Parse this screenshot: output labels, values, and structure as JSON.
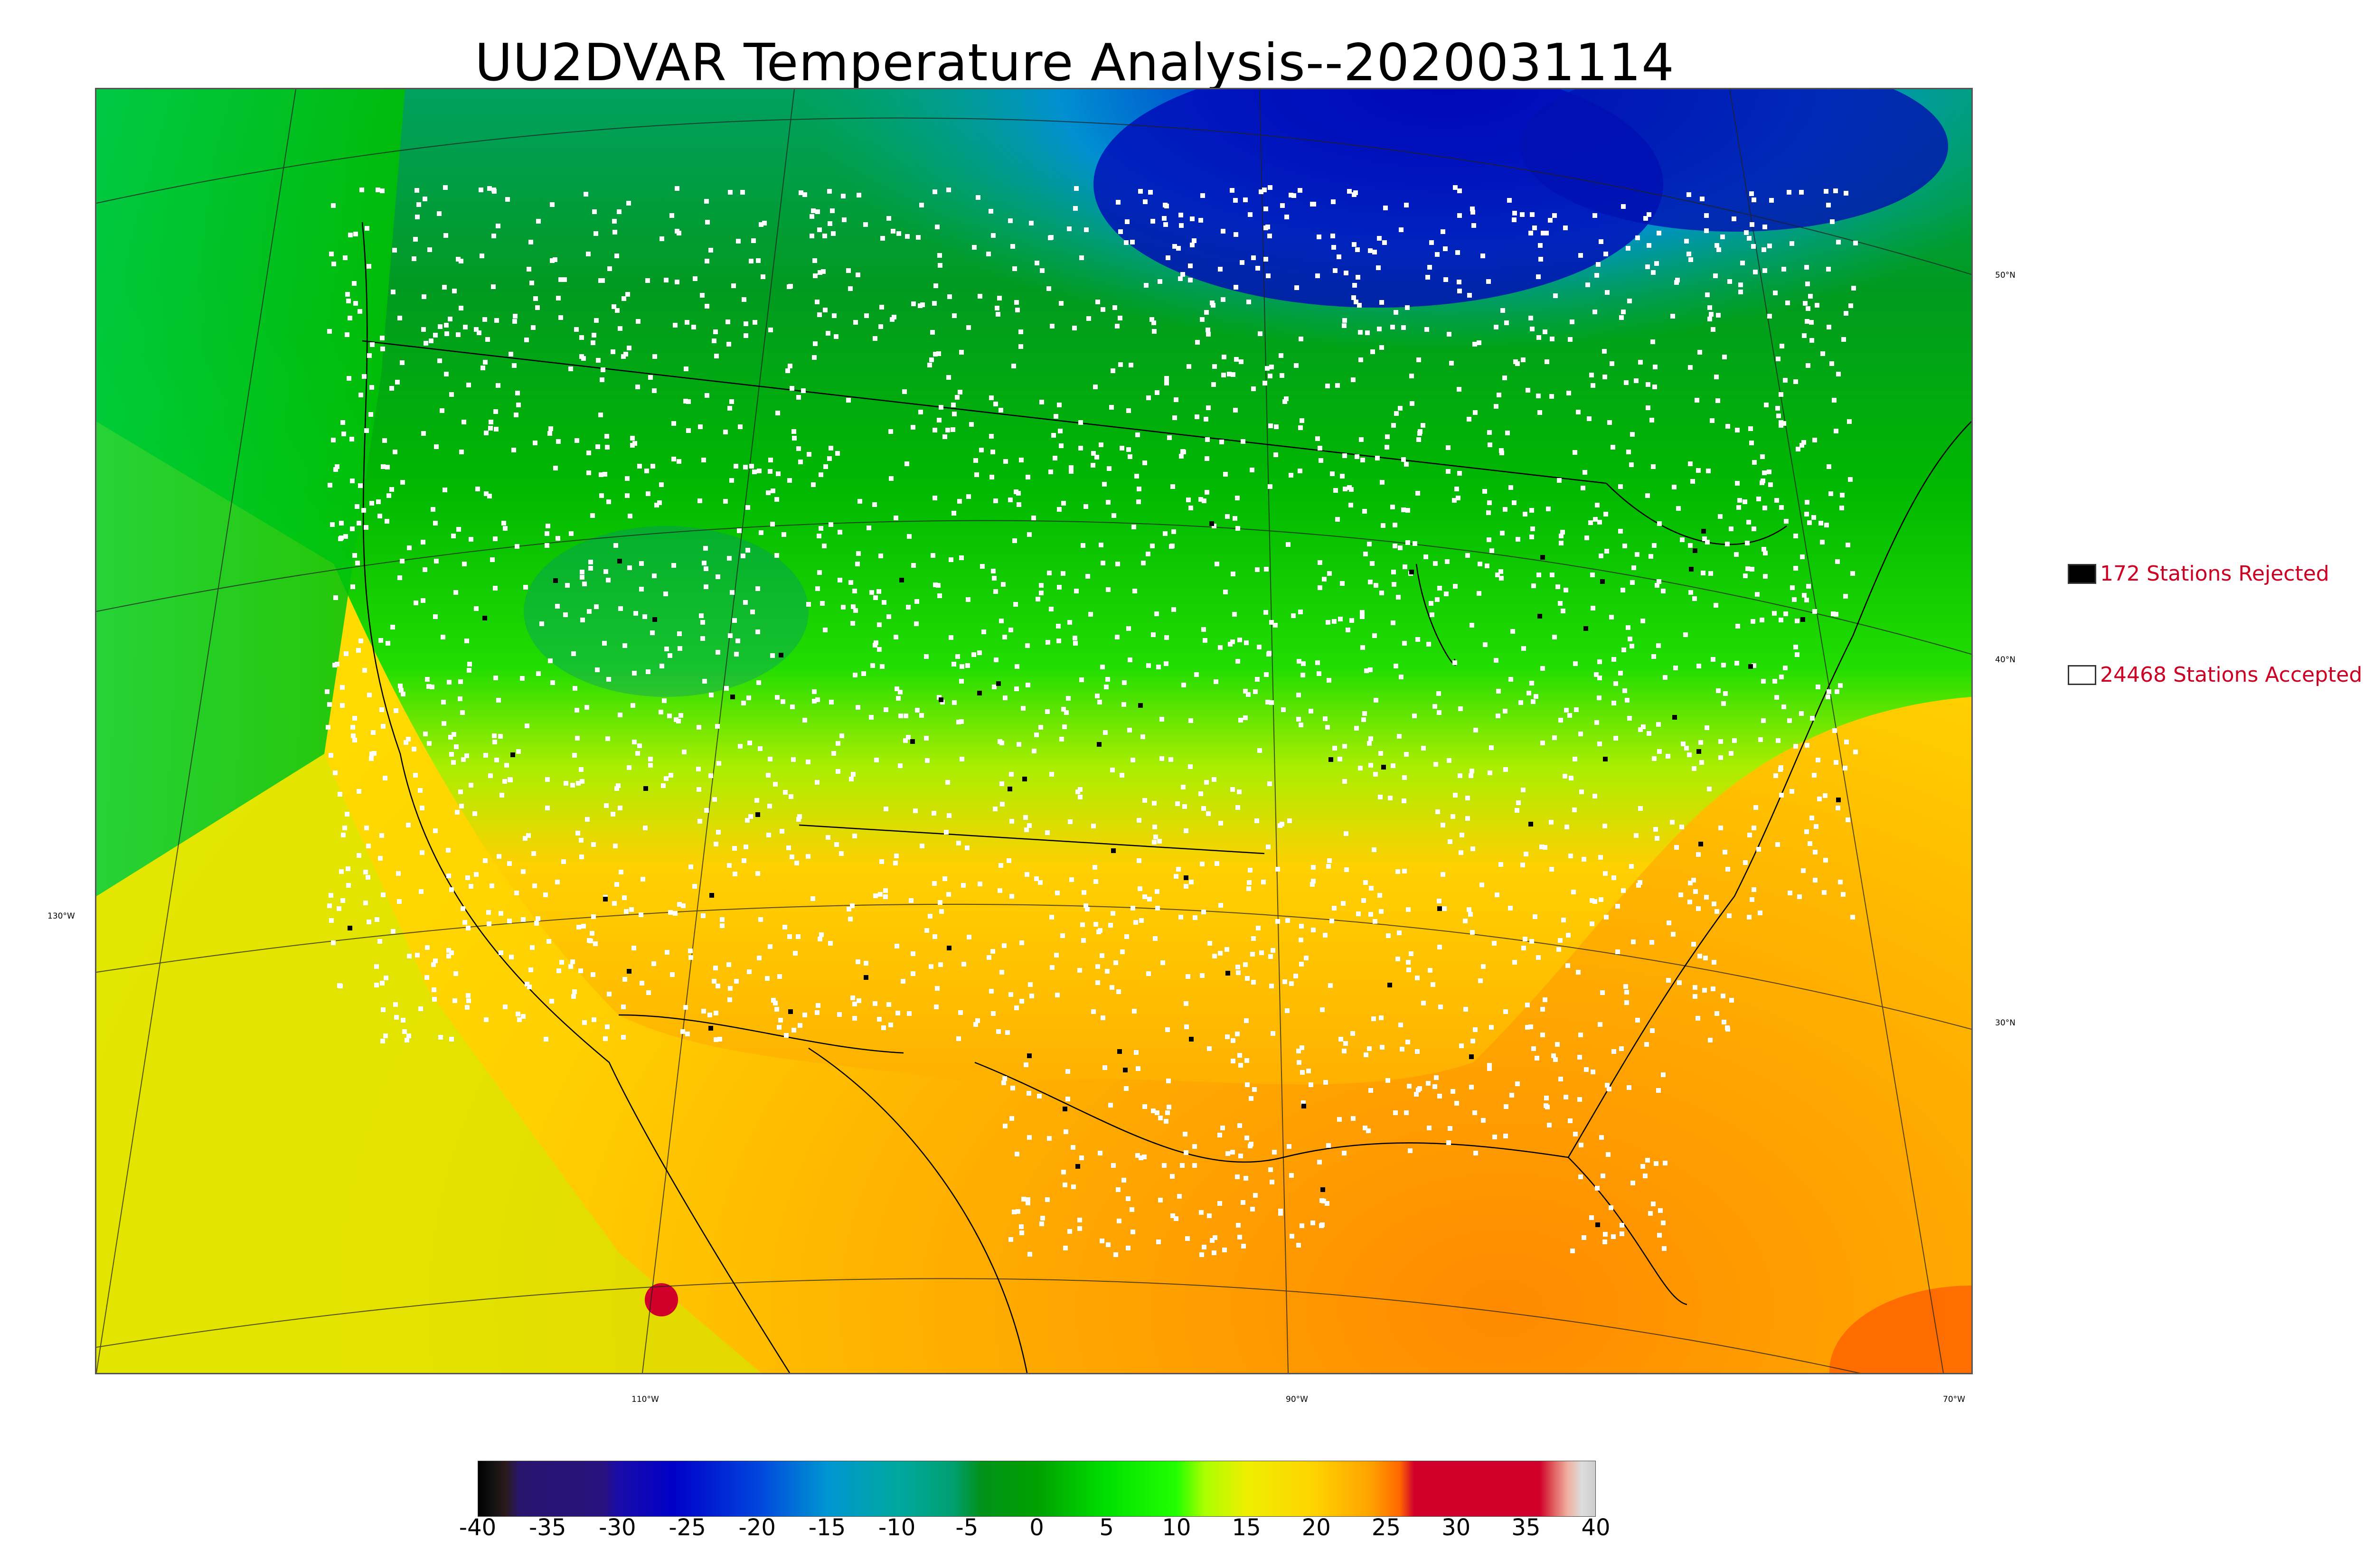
{
  "title": "UU2DVAR Temperature Analysis--2020031114",
  "legend": {
    "rejected": {
      "label": "172 Stations Rejected",
      "color": "#000000"
    },
    "accepted": {
      "label": "24468 Stations Accepted",
      "color": "#ffffff"
    }
  },
  "graticule": {
    "lat_labels": [
      "50°N",
      "40°N",
      "30°N"
    ],
    "lon_labels_bottom": [
      "110°W",
      "90°W",
      "70°W"
    ],
    "lon_labels_left": [
      "130°W"
    ]
  },
  "colorbar": {
    "ticks": [
      "-40",
      "-35",
      "-30",
      "-25",
      "-20",
      "-15",
      "-10",
      "-5",
      "0",
      "5",
      "10",
      "15",
      "20",
      "25",
      "30",
      "35",
      "40"
    ],
    "min": -40,
    "max": 40,
    "stops": [
      {
        "v": -40,
        "c": "#000000"
      },
      {
        "v": -39,
        "c": "#111111"
      },
      {
        "v": -38,
        "c": "#2a1a1a"
      },
      {
        "v": -37,
        "c": "#28156e"
      },
      {
        "v": -31,
        "c": "#28127e"
      },
      {
        "v": -30,
        "c": "#1a0ca8"
      },
      {
        "v": -26,
        "c": "#0000c8"
      },
      {
        "v": -20,
        "c": "#0044dd"
      },
      {
        "v": -15,
        "c": "#0096d2"
      },
      {
        "v": -10,
        "c": "#00a8a0"
      },
      {
        "v": -6,
        "c": "#00a070"
      },
      {
        "v": -4,
        "c": "#00921a"
      },
      {
        "v": 0,
        "c": "#00a000"
      },
      {
        "v": 5,
        "c": "#00e000"
      },
      {
        "v": 10,
        "c": "#22ff00"
      },
      {
        "v": 12,
        "c": "#aaff00"
      },
      {
        "v": 15,
        "c": "#eeee00"
      },
      {
        "v": 20,
        "c": "#ffd200"
      },
      {
        "v": 24,
        "c": "#ffa000"
      },
      {
        "v": 26,
        "c": "#ff6600"
      },
      {
        "v": 27,
        "c": "#d0002a"
      },
      {
        "v": 36,
        "c": "#d0002a"
      },
      {
        "v": 37,
        "c": "#e06060"
      },
      {
        "v": 38,
        "c": "#f0b0a0"
      },
      {
        "v": 39,
        "c": "#dddddd"
      },
      {
        "v": 40,
        "c": "#cccccc"
      }
    ]
  }
}
